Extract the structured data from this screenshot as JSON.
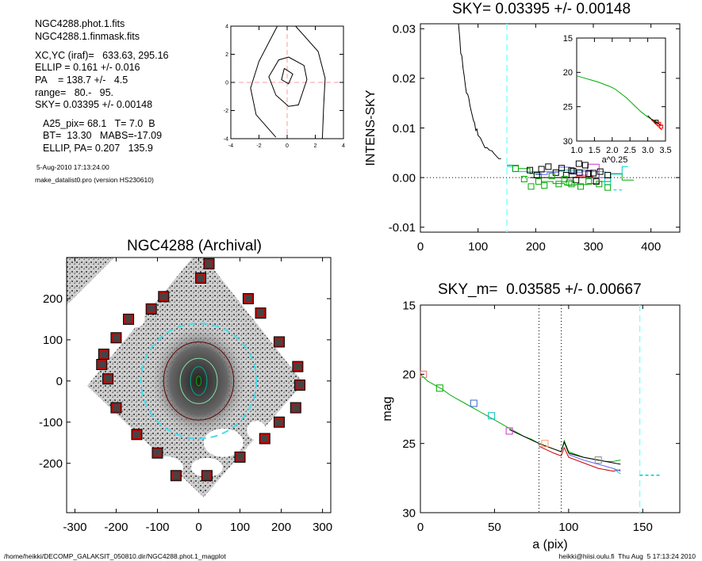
{
  "info": {
    "lines_a": [
      "NGC4288.phot.1.fits",
      "NGC4288.1.finmask.fits"
    ],
    "lines_b": [
      "XC,YC (iraf)=   633.63, 295.16",
      "ELLIP = 0.161 +/- 0.016",
      "PA    = 138.7 +/-   4.5",
      "range=   80.-   95.",
      "SKY= 0.03395 +/- 0.00148"
    ],
    "lines_c": [
      "A25_pix= 68.1   T= 7.0  B",
      "BT=  13.30   MABS=-17.09",
      "ELLIP, PA= 0.207   135.9"
    ],
    "date": "5-Aug-2010 17:13:24.00",
    "program": "make_datalist0.pro (version HS230610)"
  },
  "footer": {
    "left": "/home/heikki/DECOMP_GALAKSIT_050810.dir/NGC4288.phot.1_magplot",
    "right": "heikki@hiisi.oulu.fi  Thu Aug  5 17:13:24 2010"
  },
  "chart_data": [
    {
      "id": "contour",
      "type": "line",
      "title": "",
      "xlim": [
        -4,
        4
      ],
      "ylim": [
        -4,
        4
      ],
      "x_ticks": [
        "-4",
        "-2",
        "0",
        "2",
        "4"
      ],
      "y_ticks": [
        "-4",
        "-2",
        "0",
        "2",
        "4"
      ],
      "series": [
        {
          "points": [
            [
              -0.2,
              1
            ],
            [
              0.4,
              0.6
            ],
            [
              0.1,
              -0.1
            ],
            [
              -0.4,
              0.2
            ],
            [
              -0.2,
              1
            ]
          ]
        },
        {
          "points": [
            [
              0.1,
              1.8
            ],
            [
              1.2,
              1.2
            ],
            [
              1.4,
              0.2
            ],
            [
              0.8,
              -1.6
            ],
            [
              0.1,
              -1.7
            ],
            [
              -0.8,
              -0.9
            ],
            [
              -1.3,
              0.4
            ],
            [
              -0.6,
              1.6
            ],
            [
              0.1,
              1.8
            ]
          ]
        },
        {
          "points": [
            [
              -0.7,
              4
            ],
            [
              -2,
              1.5
            ],
            [
              -2.6,
              -0.4
            ],
            [
              -2.2,
              -2.3
            ],
            [
              -0.8,
              -3.9
            ]
          ]
        },
        {
          "points": [
            [
              0.6,
              4
            ],
            [
              2.2,
              2.2
            ],
            [
              2.7,
              0.3
            ],
            [
              2.6,
              -1.6
            ],
            [
              2.5,
              -4
            ]
          ]
        }
      ],
      "crosshair": {
        "x": 0,
        "y": 0,
        "color": "#ff9999"
      }
    },
    {
      "id": "sky",
      "type": "line",
      "title": "SKY= 0.03395 +/- 0.00148",
      "xlabel": "",
      "ylabel": "INTENS-SKY",
      "xlim": [
        0,
        450
      ],
      "ylim": [
        -0.011,
        0.031
      ],
      "x_ticks": [
        "0",
        "100",
        "200",
        "300",
        "400"
      ],
      "y_ticks": [
        "-0.01",
        "0.00",
        "0.01",
        "0.02",
        "0.03"
      ],
      "sky_lines": {
        "x": 150,
        "color": "#88ffff"
      },
      "profile": {
        "x": [
          66,
          68,
          70,
          72,
          74,
          76,
          78,
          80,
          82,
          84,
          86,
          88,
          90,
          92,
          94,
          96,
          98,
          100,
          104,
          108,
          112,
          116,
          120,
          124,
          128,
          132,
          136,
          140
        ],
        "y": [
          0.031,
          0.0285,
          0.025,
          0.0245,
          0.022,
          0.0205,
          0.0185,
          0.017,
          0.0168,
          0.016,
          0.0145,
          0.0135,
          0.0125,
          0.0115,
          0.011,
          0.0095,
          0.0098,
          0.0085,
          0.008,
          0.007,
          0.006,
          0.006,
          0.0055,
          0.0054,
          0.0048,
          0.0043,
          0.0038,
          0.0038
        ]
      },
      "series": [
        {
          "color": "#00aa00",
          "x": [
            150,
            170,
            170,
            190,
            190,
            210,
            210,
            230,
            230,
            250,
            250,
            270,
            270,
            290,
            290,
            310,
            310,
            330,
            330,
            350,
            350,
            370
          ],
          "y": [
            0.0025,
            0.0025,
            0.0018,
            0.0018,
            0.0008,
            0.0008,
            -0.0008,
            -0.0008,
            -0.0012,
            -0.0012,
            -0.0015,
            -0.0015,
            -0.0014,
            -0.0014,
            -0.0012,
            -0.0012,
            -0.0008,
            -0.0008,
            0.0008,
            0.0008,
            -0.0005,
            -0.0005
          ]
        },
        {
          "color": "#00cccc",
          "x": [
            150,
            160,
            160,
            200,
            200,
            240,
            240,
            280,
            280,
            320,
            320,
            330,
            330,
            350,
            350,
            360
          ],
          "y": [
            0.0022,
            0.0022,
            0.0012,
            0.0012,
            0.0012,
            0.0012,
            0.0015,
            0.0015,
            0.0012,
            0.0012,
            -0.0014,
            -0.0014,
            0.0007,
            0.0007,
            0.0022,
            0.0022
          ]
        },
        {
          "color": "#6666ff",
          "x": [
            200,
            220,
            220,
            240,
            240,
            260,
            260,
            280,
            280,
            300
          ],
          "y": [
            0.0006,
            0.0006,
            0.0011,
            0.0011,
            0.0021,
            0.0021,
            0.0011,
            0.0011,
            0.0015,
            0.0015
          ]
        },
        {
          "color": "#cc33cc",
          "x": [
            270,
            290,
            290,
            310,
            310,
            330
          ],
          "y": [
            0.0005,
            0.0005,
            0.0027,
            0.0027,
            0.0,
            0.0
          ]
        },
        {
          "color": "#ff3333",
          "x": [
            240,
            270,
            270,
            300
          ],
          "y": [
            0.0,
            0.0,
            0.0002,
            0.0002
          ]
        },
        {
          "color": "#000000",
          "x": [
            190,
            310
          ],
          "y": [
            0.0,
            0.0
          ]
        }
      ],
      "markers_black": [
        [
          190,
          0.0015
        ],
        [
          202,
          0.0005
        ],
        [
          210,
          0.0017
        ],
        [
          222,
          0.0022
        ],
        [
          235,
          0.001
        ],
        [
          245,
          0.0019
        ],
        [
          253,
          0.0005
        ],
        [
          262,
          0.0014
        ],
        [
          270,
          -0.0005
        ],
        [
          276,
          0.001
        ],
        [
          286,
          0.0025
        ],
        [
          292,
          0.0008
        ],
        [
          300,
          0.0009
        ],
        [
          305,
          -0.0008
        ],
        [
          312,
          0.0012
        ],
        [
          325,
          0.0005
        ],
        [
          265,
          0.0013
        ],
        [
          275,
          0.0028
        ]
      ],
      "markers_green": [
        [
          165,
          0.0018
        ],
        [
          180,
          -0.0003
        ],
        [
          192,
          -0.0018
        ],
        [
          205,
          -0.0008
        ],
        [
          215,
          -0.0016
        ],
        [
          228,
          0.0003
        ],
        [
          240,
          -0.0013
        ],
        [
          250,
          -0.0003
        ],
        [
          262,
          -0.0013
        ],
        [
          278,
          -0.0018
        ],
        [
          292,
          -0.0008
        ],
        [
          310,
          -0.0013
        ],
        [
          325,
          -0.002
        ],
        [
          258,
          -0.001
        ]
      ],
      "extra_dash": {
        "color": "#00cccc",
        "x": [
          335,
          350
        ],
        "y": [
          -0.0025,
          -0.0025
        ]
      }
    },
    {
      "id": "sky_inset",
      "type": "line",
      "xlabel": "a^0.25",
      "xlim": [
        1.0,
        3.5
      ],
      "ylim": [
        30,
        15
      ],
      "x_ticks": [
        "1.0",
        "1.5",
        "2.0",
        "2.5",
        "3.0",
        "3.5"
      ],
      "y_ticks": [
        "15",
        "20",
        "25",
        "30"
      ],
      "series": [
        {
          "color": "#00aa00",
          "x": [
            1.0,
            1.2,
            1.4,
            1.6,
            1.8,
            2.0,
            2.1,
            2.2,
            2.3,
            2.4,
            2.5,
            2.6,
            2.7,
            2.8,
            2.9,
            3.0,
            3.1,
            3.2,
            3.3,
            3.4
          ],
          "y": [
            20.5,
            20.8,
            21.1,
            21.4,
            21.8,
            22.2,
            22.5,
            22.9,
            23.3,
            23.7,
            24.2,
            24.7,
            25.2,
            25.7,
            26.1,
            26.5,
            26.8,
            27.0,
            27.4,
            27.8
          ]
        },
        {
          "color": "#000000",
          "x": [
            3.0,
            3.1,
            3.2,
            3.3,
            3.35
          ],
          "y": [
            26.3,
            26.8,
            27.2,
            27.4,
            27.7
          ]
        },
        {
          "color": "#ff0000",
          "x": [
            3.1,
            3.2,
            3.3,
            3.4
          ],
          "y": [
            26.9,
            27.4,
            27.9,
            28.4
          ]
        }
      ],
      "markers": [
        {
          "x": 3.25,
          "y": 27.2,
          "color": "#000000"
        },
        {
          "x": 3.32,
          "y": 27.5,
          "color": "#ff0000"
        },
        {
          "x": 3.38,
          "y": 27.9,
          "color": "#ff0000"
        }
      ]
    },
    {
      "id": "magplot",
      "type": "line",
      "title": "SKY_m=  0.03585 +/- 0.00667",
      "xlabel": "a (pix)",
      "ylabel": "mag",
      "xlim": [
        0,
        175
      ],
      "ylim": [
        30,
        15
      ],
      "x_ticks": [
        "0",
        "50",
        "100",
        "150"
      ],
      "y_ticks": [
        "15",
        "20",
        "25",
        "30"
      ],
      "vlines_dotted": [
        80,
        95
      ],
      "sky_line": {
        "x": 148,
        "color": "#88ffff"
      },
      "series": [
        {
          "color": "#00aa00",
          "x": [
            0,
            5,
            10,
            15,
            20,
            25,
            30,
            35,
            40,
            45,
            50,
            55,
            60,
            65,
            70,
            75,
            80,
            85,
            90,
            95,
            97,
            100,
            105,
            110,
            115,
            120,
            125,
            130,
            135
          ],
          "y": [
            20.0,
            20.5,
            20.8,
            21.1,
            21.5,
            21.8,
            22.1,
            22.4,
            22.7,
            23.0,
            23.3,
            23.6,
            23.9,
            24.2,
            24.5,
            24.7,
            25.0,
            25.2,
            25.4,
            25.6,
            24.8,
            25.6,
            25.8,
            26.0,
            26.1,
            26.2,
            26.3,
            26.3,
            26.2
          ]
        },
        {
          "color": "#000000",
          "x": [
            60,
            70,
            80,
            90,
            95,
            97,
            100,
            110,
            120,
            130,
            135
          ],
          "y": [
            24.0,
            24.5,
            25.0,
            25.4,
            25.6,
            24.9,
            25.7,
            26.0,
            26.2,
            26.4,
            26.5
          ]
        },
        {
          "color": "#cc0000",
          "x": [
            80,
            90,
            95,
            97,
            100,
            110,
            120,
            130,
            135
          ],
          "y": [
            25.2,
            25.7,
            25.9,
            25.3,
            26.0,
            26.4,
            26.8,
            27.0,
            26.9
          ]
        },
        {
          "color": "#6666ff",
          "x": [
            100,
            110,
            120,
            130,
            135
          ],
          "y": [
            25.8,
            26.2,
            26.5,
            26.8,
            27.0
          ]
        },
        {
          "color": "#00cccc",
          "x": [
            130,
            135
          ],
          "y": [
            26.8,
            27.2
          ]
        }
      ],
      "markers": [
        {
          "x": 2,
          "y": 20.0,
          "color": "#ff6666"
        },
        {
          "x": 13,
          "y": 21.0,
          "color": "#00aa00"
        },
        {
          "x": 36,
          "y": 22.1,
          "color": "#3366cc"
        },
        {
          "x": 48,
          "y": 23.0,
          "color": "#00bbbb"
        },
        {
          "x": 60,
          "y": 24.1,
          "color": "#cc33cc"
        },
        {
          "x": 84,
          "y": 25.0,
          "color": "#ff9966"
        },
        {
          "x": 120,
          "y": 26.2,
          "color": "#888888"
        }
      ],
      "sky_dash": {
        "x": [
          148,
          162
        ],
        "y": [
          27.3,
          27.3
        ]
      }
    },
    {
      "id": "image",
      "type": "scatter",
      "title": "NGC4288 (Archival)",
      "xlim": [
        -320,
        320
      ],
      "ylim": [
        -320,
        300
      ],
      "x_ticks": [
        "-300",
        "-200",
        "-100",
        "0",
        "100",
        "200",
        "300"
      ],
      "y_ticks": [
        "-200",
        "-100",
        "0",
        "100",
        "200"
      ],
      "sky_boxes": [
        [
          25,
          285
        ],
        [
          5,
          250
        ],
        [
          -85,
          205
        ],
        [
          -115,
          175
        ],
        [
          -170,
          150
        ],
        [
          -200,
          105
        ],
        [
          -230,
          65
        ],
        [
          -235,
          40
        ],
        [
          -220,
          5
        ],
        [
          -200,
          -65
        ],
        [
          -150,
          -130
        ],
        [
          -100,
          -175
        ],
        [
          -55,
          -230
        ],
        [
          100,
          -185
        ],
        [
          160,
          -140
        ],
        [
          195,
          -100
        ],
        [
          235,
          -65
        ],
        [
          245,
          -10
        ],
        [
          240,
          35
        ],
        [
          195,
          95
        ],
        [
          150,
          165
        ],
        [
          120,
          200
        ],
        [
          20,
          -230
        ]
      ],
      "ellipses": [
        {
          "r": 140,
          "ry": 140,
          "color": "#44ddee",
          "dash": true
        },
        {
          "r": 85,
          "ry": 95,
          "color": "#660000",
          "dash": false
        },
        {
          "r": 45,
          "ry": 55,
          "color": "#88ddaa",
          "dash": false
        },
        {
          "r": 20,
          "ry": 35,
          "color": "#00aa88",
          "dash": false
        },
        {
          "r": 6,
          "ry": 12,
          "color": "#00aa00",
          "dash": false
        }
      ]
    }
  ]
}
